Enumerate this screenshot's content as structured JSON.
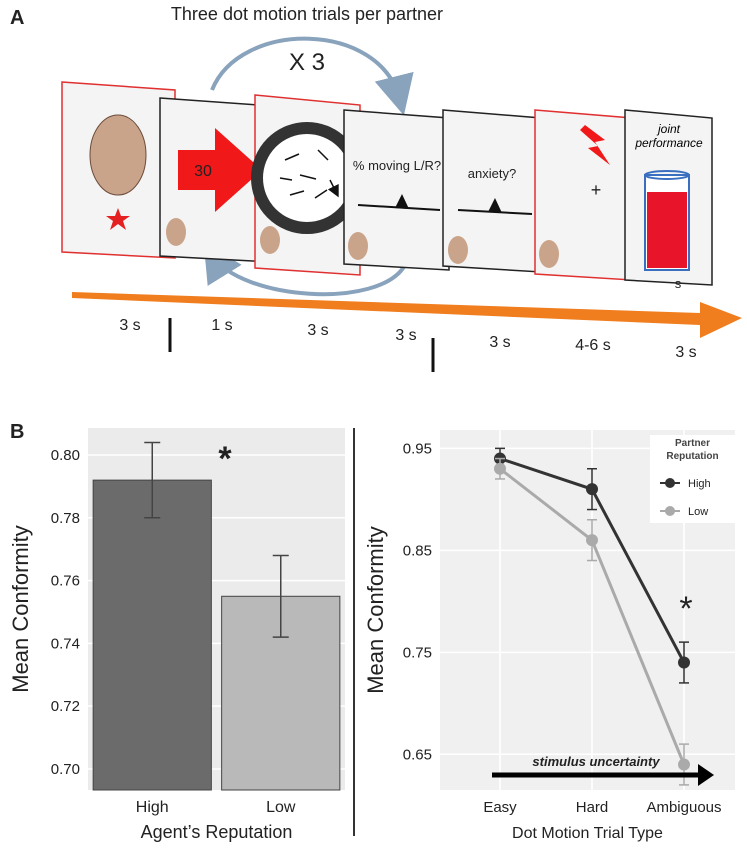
{
  "panel_a": {
    "label": "A",
    "title": "Three dot motion trials per partner",
    "repeat": "X 3",
    "arrow_number": "30",
    "question_motion": "% moving L/R?",
    "question_anxiety": "anxiety?",
    "joint_performance": "joint performance",
    "glass_label": "s",
    "timings": [
      "3 s",
      "1 s",
      "3 s",
      "3 s",
      "3 s",
      "4-6 s",
      "3 s"
    ]
  },
  "panel_b_label": "B",
  "chart_data": [
    {
      "type": "bar",
      "categories": [
        "High",
        "Low"
      ],
      "values": [
        0.792,
        0.755
      ],
      "errors": [
        0.012,
        0.013
      ],
      "colors": [
        "#6b6b6b",
        "#b9b9b9"
      ],
      "x_label": "Agent’s Reputation",
      "y_label": "Mean Conformity",
      "ylim": [
        0.6933,
        0.8086
      ],
      "yticks": [
        {
          "value": 0.7,
          "label": "0.70"
        },
        0.72,
        0.74,
        0.76,
        0.78,
        {
          "value": 0.8,
          "label": "0.80"
        }
      ],
      "grid": true,
      "annotation": "*"
    },
    {
      "type": "line",
      "categories": [
        "Easy",
        "Hard",
        "Ambiguous"
      ],
      "x_label": "Dot Motion Trial Type",
      "y_label": "Mean Conformity",
      "series": [
        {
          "name": "High",
          "color": "#333333",
          "values": [
            0.94,
            0.91,
            0.74
          ],
          "errors": [
            0.01,
            0.02,
            0.02
          ]
        },
        {
          "name": "Low",
          "color": "#aaaaaa",
          "values": [
            0.93,
            0.86,
            0.64
          ],
          "errors": [
            0.01,
            0.02,
            0.02
          ]
        }
      ],
      "ylim": [
        0.615,
        0.968
      ],
      "yticks": [
        0.65,
        0.75,
        0.85,
        0.95
      ],
      "grid": true,
      "legend_title": "Partner Reputation",
      "legend": "top-right",
      "annotation": "*",
      "arrow_label": "stimulus uncertainty"
    }
  ]
}
